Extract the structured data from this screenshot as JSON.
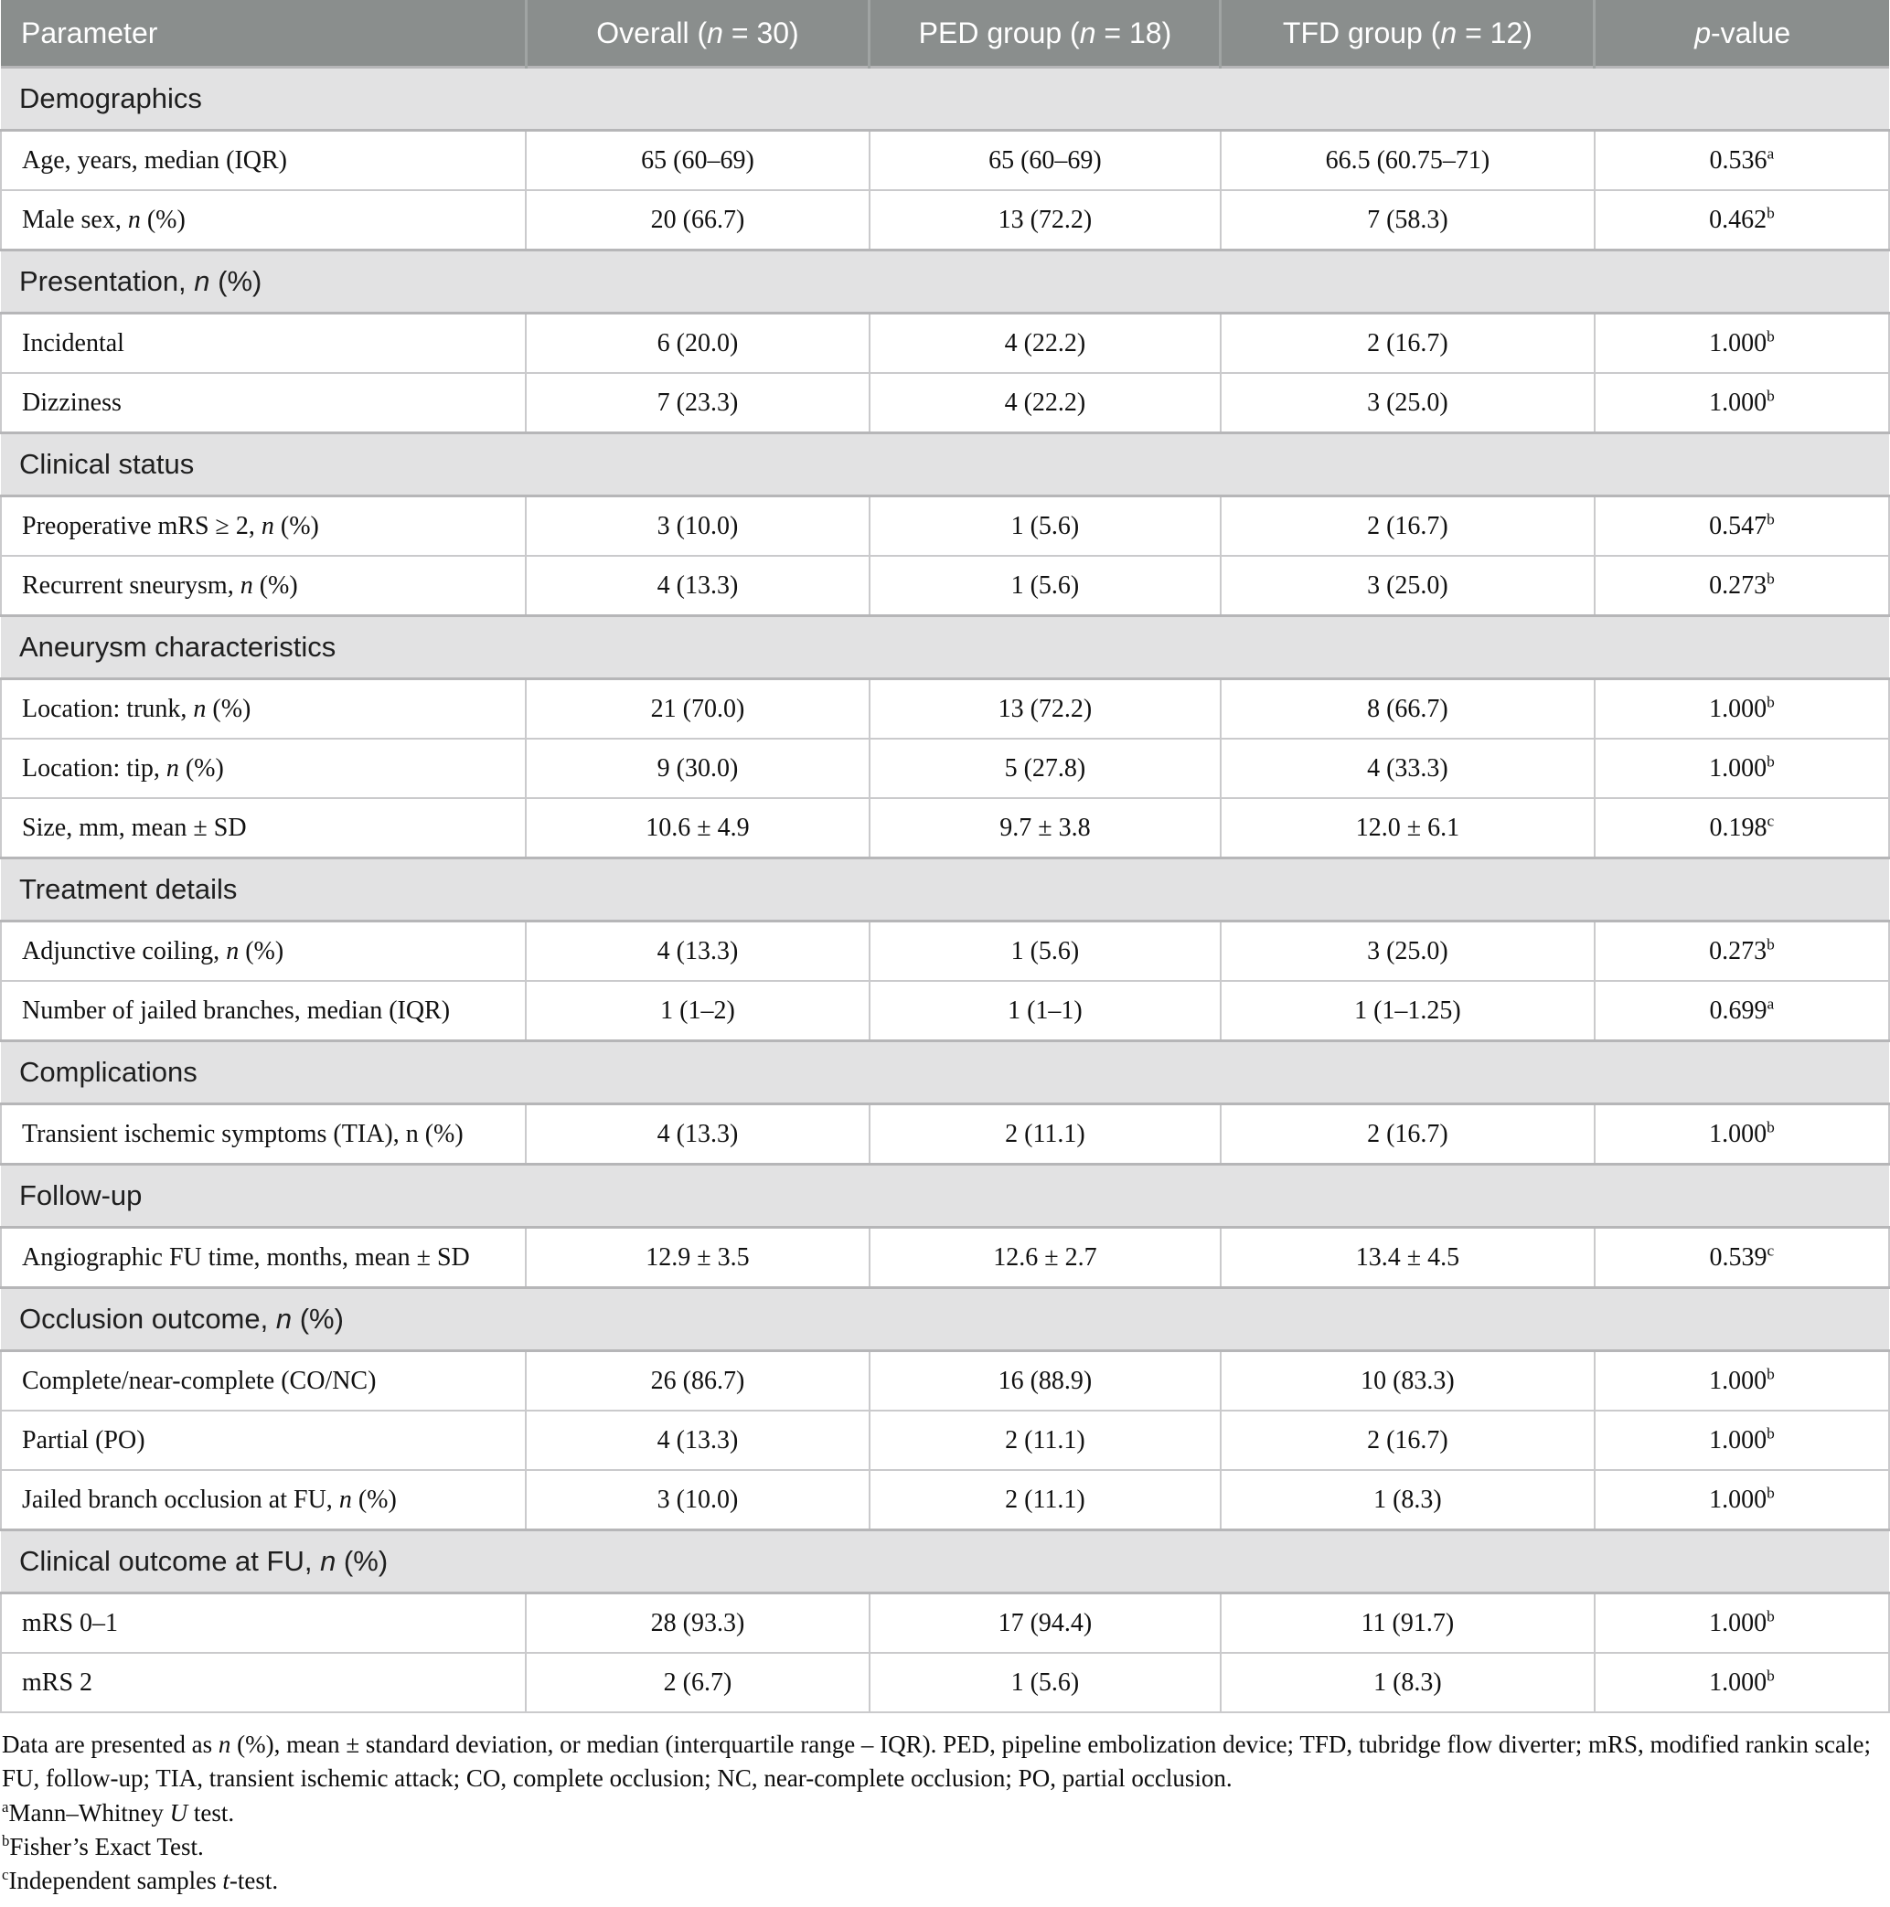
{
  "colors": {
    "header_bg": "#8a8e8d",
    "header_text": "#ffffff",
    "section_bg": "#e2e2e3",
    "border": "#cacacc"
  },
  "table": {
    "columns": [
      "Parameter",
      "Overall (<i>n</i> = 30)",
      "PED group (<i>n</i> = 18)",
      "TFD group (<i>n</i> = 12)",
      "<i>p</i>-value"
    ],
    "sections": [
      {
        "title": "Demographics",
        "rows": [
          {
            "label": "Age, years, median (IQR)",
            "cells": [
              "65 (60–69)",
              "65 (60–69)",
              "66.5 (60.75–71)",
              "0.536<sup>a</sup>"
            ]
          },
          {
            "label": "Male sex, <i>n</i> (%)",
            "cells": [
              "20 (66.7)",
              "13 (72.2)",
              "7 (58.3)",
              "0.462<sup>b</sup>"
            ]
          }
        ]
      },
      {
        "title": "Presentation, <i>n</i> (%)",
        "rows": [
          {
            "label": "Incidental",
            "cells": [
              "6 (20.0)",
              "4 (22.2)",
              "2 (16.7)",
              "1.000<sup>b</sup>"
            ]
          },
          {
            "label": "Dizziness",
            "cells": [
              "7 (23.3)",
              "4 (22.2)",
              "3 (25.0)",
              "1.000<sup>b</sup>"
            ]
          }
        ]
      },
      {
        "title": "Clinical status",
        "rows": [
          {
            "label": "Preoperative mRS ≥ 2, <i>n</i> (%)",
            "cells": [
              "3 (10.0)",
              "1 (5.6)",
              "2 (16.7)",
              "0.547<sup>b</sup>"
            ]
          },
          {
            "label": "Recurrent sneurysm, <i>n</i> (%)",
            "cells": [
              "4 (13.3)",
              "1 (5.6)",
              "3 (25.0)",
              "0.273<sup>b</sup>"
            ]
          }
        ]
      },
      {
        "title": "Aneurysm characteristics",
        "rows": [
          {
            "label": "Location: trunk, <i>n</i> (%)",
            "cells": [
              "21 (70.0)",
              "13 (72.2)",
              "8 (66.7)",
              "1.000<sup>b</sup>"
            ]
          },
          {
            "label": "Location: tip, <i>n</i> (%)",
            "cells": [
              "9 (30.0)",
              "5 (27.8)",
              "4 (33.3)",
              "1.000<sup>b</sup>"
            ]
          },
          {
            "label": "Size, mm, mean ± SD",
            "cells": [
              "10.6 ± 4.9",
              "9.7 ± 3.8",
              "12.0 ± 6.1",
              "0.198<sup>c</sup>"
            ]
          }
        ]
      },
      {
        "title": "Treatment details",
        "rows": [
          {
            "label": "Adjunctive coiling, <i>n</i> (%)",
            "cells": [
              "4 (13.3)",
              "1 (5.6)",
              "3 (25.0)",
              "0.273<sup>b</sup>"
            ]
          },
          {
            "label": "Number of jailed branches, median (IQR)",
            "cells": [
              "1 (1–2)",
              "1 (1–1)",
              "1 (1–1.25)",
              "0.699<sup>a</sup>"
            ]
          }
        ]
      },
      {
        "title": "Complications",
        "rows": [
          {
            "label": "Transient ischemic symptoms (TIA), n (%)",
            "cells": [
              "4 (13.3)",
              "2 (11.1)",
              "2 (16.7)",
              "1.000<sup>b</sup>"
            ]
          }
        ]
      },
      {
        "title": "Follow-up",
        "rows": [
          {
            "label": "Angiographic FU time, months, mean ± SD",
            "cells": [
              "12.9 ± 3.5",
              "12.6 ± 2.7",
              "13.4 ± 4.5",
              "0.539<sup>c</sup>"
            ]
          }
        ]
      },
      {
        "title": "Occlusion outcome, <i>n</i> (%)",
        "rows": [
          {
            "label": "Complete/near-complete (CO/NC)",
            "cells": [
              "26 (86.7)",
              "16 (88.9)",
              "10 (83.3)",
              "1.000<sup>b</sup>"
            ]
          },
          {
            "label": "Partial (PO)",
            "cells": [
              "4 (13.3)",
              "2 (11.1)",
              "2 (16.7)",
              "1.000<sup>b</sup>"
            ]
          },
          {
            "label": "Jailed branch occlusion at FU, <i>n</i> (%)",
            "cells": [
              "3 (10.0)",
              "2 (11.1)",
              "1 (8.3)",
              "1.000<sup>b</sup>"
            ]
          }
        ]
      },
      {
        "title": "Clinical outcome at FU, <i>n</i> (%)",
        "rows": [
          {
            "label": "mRS 0–1",
            "cells": [
              "28 (93.3)",
              "17 (94.4)",
              "11 (91.7)",
              "1.000<sup>b</sup>"
            ]
          },
          {
            "label": "mRS 2",
            "cells": [
              "2 (6.7)",
              "1 (5.6)",
              "1 (8.3)",
              "1.000<sup>b</sup>"
            ]
          }
        ]
      }
    ]
  },
  "footnotes": {
    "lines": [
      "Data are presented as <i>n</i> (%), mean ± standard deviation, or median (interquartile range – IQR). PED, pipeline embolization device; TFD, tubridge flow diverter; mRS, modified rankin scale; FU, follow-up; TIA, transient ischemic attack; CO, complete occlusion; NC, near-complete occlusion; PO, partial occlusion.",
      "<sup>a</sup>Mann–Whitney <i>U</i> test.",
      "<sup>b</sup>Fisher’s Exact Test.",
      "<sup>c</sup>Independent samples <i>t</i>-test."
    ]
  }
}
